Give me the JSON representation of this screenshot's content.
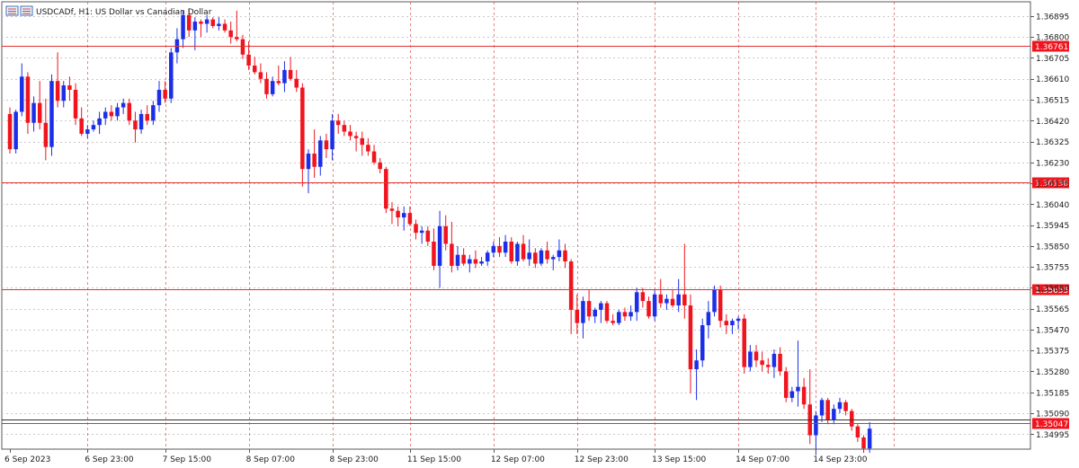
{
  "window": {
    "title": "USDCADf, H1:  US Dollar vs Canadian Dollar",
    "icon": "chart-window-icon"
  },
  "colors": {
    "bull": "#1c2fe8",
    "bear": "#f0141e",
    "doji": "#22aa22",
    "grid": "#c8c8c8",
    "vgrid": "#e05050",
    "hline": "#e03030",
    "price_line": "#333333",
    "label_bg": "#f0141e"
  },
  "chart_data": {
    "type": "candlestick",
    "symbol": "USDCADf",
    "timeframe": "H1",
    "ylim": [
      1.34935,
      1.3696
    ],
    "y_ticks": [
      "1.36895",
      "1.36800",
      "1.36705",
      "1.36610",
      "1.36515",
      "1.36420",
      "1.36325",
      "1.36230",
      "1.36135",
      "1.36040",
      "1.35945",
      "1.35850",
      "1.35755",
      "1.35660",
      "1.35565",
      "1.35470",
      "1.35375",
      "1.35280",
      "1.35185",
      "1.35090",
      "1.34995"
    ],
    "x_labels": [
      "6 Sep 2023",
      "6 Sep 23:00",
      "7 Sep 15:00",
      "8 Sep 07:00",
      "8 Sep 23:00",
      "11 Sep 15:00",
      "12 Sep 07:00",
      "12 Sep 23:00",
      "13 Sep 15:00",
      "14 Sep 07:00",
      "14 Sep 23:00"
    ],
    "horizontal_lines": [
      {
        "value": 1.36761,
        "label": "1.36761"
      },
      {
        "value": 1.36138,
        "label": "1.36138"
      },
      {
        "value": 1.35655,
        "label": "1.35655"
      },
      {
        "value": 1.35047,
        "label": "1.35047"
      }
    ],
    "price_line": 1.35062,
    "candles": [
      [
        1.3645,
        1.3648,
        1.3627,
        1.3629
      ],
      [
        1.3629,
        1.3647,
        1.3627,
        1.3646
      ],
      [
        1.3646,
        1.3668,
        1.3644,
        1.3662
      ],
      [
        1.3662,
        1.3664,
        1.3636,
        1.3641
      ],
      [
        1.3641,
        1.3653,
        1.3637,
        1.365
      ],
      [
        1.365,
        1.366,
        1.3638,
        1.3641
      ],
      [
        1.3641,
        1.3652,
        1.3624,
        1.363
      ],
      [
        1.363,
        1.3663,
        1.3626,
        1.366
      ],
      [
        1.366,
        1.3673,
        1.3648,
        1.3651
      ],
      [
        1.3651,
        1.366,
        1.3648,
        1.3658
      ],
      [
        1.3658,
        1.3662,
        1.3651,
        1.3656
      ],
      [
        1.3656,
        1.3659,
        1.364,
        1.3643
      ],
      [
        1.3643,
        1.3648,
        1.3635,
        1.3636
      ],
      [
        1.3636,
        1.364,
        1.3634,
        1.3638
      ],
      [
        1.3638,
        1.3642,
        1.3637,
        1.364
      ],
      [
        1.364,
        1.3646,
        1.3636,
        1.3643
      ],
      [
        1.3643,
        1.3648,
        1.364,
        1.3646
      ],
      [
        1.3646,
        1.3649,
        1.3642,
        1.3644
      ],
      [
        1.3644,
        1.365,
        1.3642,
        1.3648
      ],
      [
        1.3648,
        1.3652,
        1.3645,
        1.365
      ],
      [
        1.365,
        1.3652,
        1.364,
        1.3642
      ],
      [
        1.3642,
        1.3646,
        1.3632,
        1.3638
      ],
      [
        1.3638,
        1.3647,
        1.3636,
        1.3645
      ],
      [
        1.3645,
        1.3649,
        1.364,
        1.3642
      ],
      [
        1.3642,
        1.3651,
        1.364,
        1.3649
      ],
      [
        1.3649,
        1.366,
        1.3646,
        1.3656
      ],
      [
        1.3656,
        1.366,
        1.365,
        1.3652
      ],
      [
        1.3652,
        1.3675,
        1.365,
        1.3673
      ],
      [
        1.3673,
        1.3684,
        1.3668,
        1.3679
      ],
      [
        1.3679,
        1.3692,
        1.3675,
        1.369
      ],
      [
        1.369,
        1.3693,
        1.368,
        1.3683
      ],
      [
        1.3683,
        1.3689,
        1.3674,
        1.3687
      ],
      [
        1.3687,
        1.3688,
        1.368,
        1.3686
      ],
      [
        1.3686,
        1.369,
        1.3682,
        1.3688
      ],
      [
        1.3688,
        1.3689,
        1.3684,
        1.3685
      ],
      [
        1.3685,
        1.3689,
        1.3683,
        1.3686
      ],
      [
        1.3686,
        1.3688,
        1.3682,
        1.3683
      ],
      [
        1.3683,
        1.3687,
        1.3677,
        1.368
      ],
      [
        1.368,
        1.3692,
        1.3678,
        1.3679
      ],
      [
        1.3679,
        1.3681,
        1.367,
        1.3672
      ],
      [
        1.3672,
        1.3678,
        1.3665,
        1.3667
      ],
      [
        1.3667,
        1.3671,
        1.3663,
        1.3664
      ],
      [
        1.3664,
        1.3668,
        1.3659,
        1.3661
      ],
      [
        1.3661,
        1.3664,
        1.3652,
        1.3654
      ],
      [
        1.3654,
        1.3662,
        1.3653,
        1.366
      ],
      [
        1.366,
        1.3667,
        1.3658,
        1.3659
      ],
      [
        1.3659,
        1.3669,
        1.3655,
        1.3665
      ],
      [
        1.3665,
        1.3671,
        1.366,
        1.3661
      ],
      [
        1.3661,
        1.3665,
        1.3655,
        1.3657
      ],
      [
        1.3657,
        1.3659,
        1.3612,
        1.362
      ],
      [
        1.362,
        1.3629,
        1.3609,
        1.3627
      ],
      [
        1.3627,
        1.3638,
        1.3616,
        1.3621
      ],
      [
        1.3621,
        1.3635,
        1.3617,
        1.3633
      ],
      [
        1.3633,
        1.3636,
        1.3625,
        1.3629
      ],
      [
        1.3629,
        1.3645,
        1.3624,
        1.3642
      ],
      [
        1.3642,
        1.3645,
        1.3636,
        1.364
      ],
      [
        1.364,
        1.3642,
        1.3635,
        1.3637
      ],
      [
        1.3637,
        1.364,
        1.3633,
        1.3635
      ],
      [
        1.3635,
        1.3637,
        1.3628,
        1.3634
      ],
      [
        1.3634,
        1.3637,
        1.3626,
        1.3631
      ],
      [
        1.3631,
        1.3634,
        1.3626,
        1.3628
      ],
      [
        1.3628,
        1.3631,
        1.3622,
        1.3623
      ],
      [
        1.3623,
        1.3625,
        1.3618,
        1.362
      ],
      [
        1.362,
        1.3621,
        1.36,
        1.3602
      ],
      [
        1.3602,
        1.3605,
        1.3595,
        1.3601
      ],
      [
        1.3601,
        1.3603,
        1.3594,
        1.3598
      ],
      [
        1.3598,
        1.3603,
        1.3592,
        1.36
      ],
      [
        1.36,
        1.3603,
        1.3594,
        1.3595
      ],
      [
        1.3595,
        1.3597,
        1.3588,
        1.3591
      ],
      [
        1.3591,
        1.3594,
        1.3586,
        1.3592
      ],
      [
        1.3592,
        1.3594,
        1.3585,
        1.3587
      ],
      [
        1.3587,
        1.3593,
        1.3574,
        1.3576
      ],
      [
        1.3576,
        1.3601,
        1.3566,
        1.3594
      ],
      [
        1.3594,
        1.3599,
        1.3583,
        1.3586
      ],
      [
        1.3586,
        1.3596,
        1.3573,
        1.3576
      ],
      [
        1.3576,
        1.3585,
        1.3574,
        1.3581
      ],
      [
        1.3581,
        1.3584,
        1.3576,
        1.3577
      ],
      [
        1.3577,
        1.3581,
        1.3573,
        1.3579
      ],
      [
        1.3579,
        1.3583,
        1.3575,
        1.3577
      ],
      [
        1.3577,
        1.358,
        1.3576,
        1.3578
      ],
      [
        1.3578,
        1.3583,
        1.3576,
        1.3582
      ],
      [
        1.3582,
        1.3587,
        1.358,
        1.3585
      ],
      [
        1.3585,
        1.3589,
        1.358,
        1.3582
      ],
      [
        1.3582,
        1.359,
        1.358,
        1.3587
      ],
      [
        1.3587,
        1.3589,
        1.3577,
        1.3578
      ],
      [
        1.3578,
        1.3587,
        1.3576,
        1.3586
      ],
      [
        1.3586,
        1.359,
        1.3578,
        1.3579
      ],
      [
        1.3579,
        1.3588,
        1.3576,
        1.3582
      ],
      [
        1.3582,
        1.3584,
        1.3575,
        1.3577
      ],
      [
        1.3577,
        1.3584,
        1.3576,
        1.3583
      ],
      [
        1.3583,
        1.3587,
        1.3577,
        1.3579
      ],
      [
        1.3579,
        1.3581,
        1.3574,
        1.358
      ],
      [
        1.358,
        1.3588,
        1.3578,
        1.3583
      ],
      [
        1.3583,
        1.3586,
        1.3575,
        1.3578
      ],
      [
        1.3578,
        1.3579,
        1.3545,
        1.3556
      ],
      [
        1.3556,
        1.3563,
        1.3545,
        1.355
      ],
      [
        1.355,
        1.3562,
        1.3543,
        1.356
      ],
      [
        1.356,
        1.3565,
        1.3551,
        1.3553
      ],
      [
        1.3553,
        1.3557,
        1.355,
        1.3556
      ],
      [
        1.3556,
        1.356,
        1.355,
        1.3559
      ],
      [
        1.3559,
        1.356,
        1.355,
        1.3551
      ],
      [
        1.3551,
        1.3554,
        1.3549,
        1.355
      ],
      [
        1.355,
        1.3556,
        1.3549,
        1.3555
      ],
      [
        1.3555,
        1.3557,
        1.3551,
        1.3553
      ],
      [
        1.3553,
        1.3558,
        1.3551,
        1.3555
      ],
      [
        1.3555,
        1.3566,
        1.3551,
        1.3564
      ],
      [
        1.3564,
        1.3566,
        1.3557,
        1.356
      ],
      [
        1.356,
        1.3562,
        1.3552,
        1.3553
      ],
      [
        1.3553,
        1.3565,
        1.3551,
        1.3563
      ],
      [
        1.3563,
        1.357,
        1.3557,
        1.3559
      ],
      [
        1.3559,
        1.3563,
        1.3556,
        1.3561
      ],
      [
        1.3561,
        1.3565,
        1.3557,
        1.3558
      ],
      [
        1.3558,
        1.357,
        1.3555,
        1.3563
      ],
      [
        1.3563,
        1.3586,
        1.3552,
        1.3558
      ],
      [
        1.3558,
        1.3563,
        1.3518,
        1.3529
      ],
      [
        1.3529,
        1.3538,
        1.3515,
        1.3533
      ],
      [
        1.3533,
        1.3552,
        1.353,
        1.3549
      ],
      [
        1.3549,
        1.356,
        1.3543,
        1.3555
      ],
      [
        1.3555,
        1.3567,
        1.3553,
        1.3565
      ],
      [
        1.3565,
        1.3567,
        1.3548,
        1.3551
      ],
      [
        1.3551,
        1.3554,
        1.3545,
        1.3549
      ],
      [
        1.3549,
        1.3552,
        1.3545,
        1.3551
      ],
      [
        1.3551,
        1.3553,
        1.3547,
        1.3552
      ],
      [
        1.3552,
        1.3554,
        1.3527,
        1.353
      ],
      [
        1.353,
        1.354,
        1.3528,
        1.3537
      ],
      [
        1.3537,
        1.354,
        1.353,
        1.3533
      ],
      [
        1.3533,
        1.3537,
        1.3528,
        1.3531
      ],
      [
        1.3531,
        1.3534,
        1.3527,
        1.353
      ],
      [
        1.353,
        1.3538,
        1.3525,
        1.3536
      ],
      [
        1.3536,
        1.3539,
        1.3526,
        1.3528
      ],
      [
        1.3528,
        1.353,
        1.3514,
        1.3516
      ],
      [
        1.3516,
        1.3521,
        1.3514,
        1.3519
      ],
      [
        1.3519,
        1.3542,
        1.3512,
        1.3521
      ],
      [
        1.3521,
        1.3525,
        1.3511,
        1.3513
      ],
      [
        1.3513,
        1.3529,
        1.3495,
        1.3499
      ],
      [
        1.3499,
        1.351,
        1.349,
        1.3508
      ],
      [
        1.3508,
        1.3516,
        1.3505,
        1.3515
      ],
      [
        1.3515,
        1.3516,
        1.3504,
        1.3506
      ],
      [
        1.3506,
        1.3513,
        1.3504,
        1.3511
      ],
      [
        1.3511,
        1.3516,
        1.3509,
        1.3514
      ],
      [
        1.3514,
        1.3515,
        1.3508,
        1.351
      ],
      [
        1.351,
        1.3511,
        1.3501,
        1.3503
      ],
      [
        1.3503,
        1.3504,
        1.3496,
        1.3498
      ],
      [
        1.3498,
        1.3499,
        1.3491,
        1.3493
      ],
      [
        1.3493,
        1.3505,
        1.3491,
        1.3502
      ]
    ]
  }
}
